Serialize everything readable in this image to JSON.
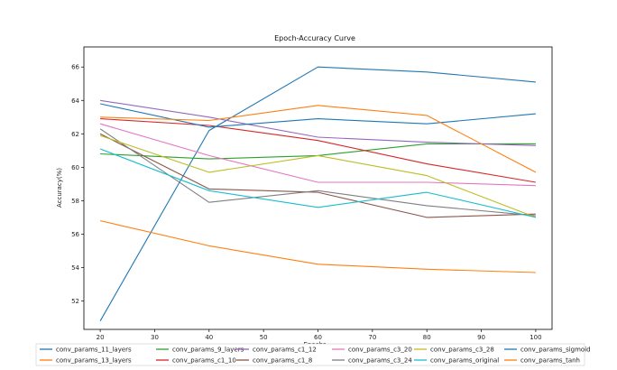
{
  "chart_data": {
    "type": "line",
    "title": "Epoch-Accuracy Curve",
    "xlabel": "Epochs",
    "ylabel": "Accuracy(%)",
    "xlim": [
      17,
      103
    ],
    "ylim": [
      50.3,
      67.2
    ],
    "xticks": [
      20,
      30,
      40,
      50,
      60,
      70,
      80,
      90,
      100
    ],
    "yticks": [
      52,
      54,
      56,
      58,
      60,
      62,
      64,
      66
    ],
    "legend_position": "bottom",
    "grid": false,
    "x": [
      20,
      40,
      60,
      80,
      100
    ],
    "series": [
      {
        "name": "conv_params_11_layers",
        "color": "#1f77b4",
        "values": [
          50.8,
          62.2,
          66.0,
          65.7,
          65.1
        ]
      },
      {
        "name": "conv_params_13_layers",
        "color": "#ff7f0e",
        "values": [
          56.8,
          55.3,
          54.2,
          53.9,
          53.7
        ]
      },
      {
        "name": "conv_params_9_layers",
        "color": "#2ca02c",
        "values": [
          60.8,
          60.5,
          60.7,
          61.4,
          61.4
        ]
      },
      {
        "name": "conv_params_c1_10",
        "color": "#d62728",
        "values": [
          62.9,
          62.5,
          61.6,
          60.2,
          59.1
        ]
      },
      {
        "name": "conv_params_c1_12",
        "color": "#9467bd",
        "values": [
          64.0,
          63.0,
          61.8,
          61.5,
          61.3
        ]
      },
      {
        "name": "conv_params_c1_8",
        "color": "#8c564b",
        "values": [
          62.0,
          58.7,
          58.5,
          57.0,
          57.2
        ]
      },
      {
        "name": "conv_params_c3_20",
        "color": "#e377c2",
        "values": [
          62.6,
          60.7,
          59.1,
          59.1,
          58.9
        ]
      },
      {
        "name": "conv_params_c3_24",
        "color": "#7f7f7f",
        "values": [
          62.3,
          57.9,
          58.6,
          57.7,
          57.1
        ]
      },
      {
        "name": "conv_params_c3_28",
        "color": "#bcbd22",
        "values": [
          61.9,
          59.7,
          60.7,
          59.5,
          57.0
        ]
      },
      {
        "name": "conv_params_original",
        "color": "#17becf",
        "values": [
          61.1,
          58.6,
          57.6,
          58.5,
          57.0
        ]
      },
      {
        "name": "conv_params_sigmoid",
        "color": "#1f77b4",
        "values": [
          63.8,
          62.4,
          62.9,
          62.6,
          63.2
        ]
      },
      {
        "name": "conv_params_tanh",
        "color": "#ff7f0e",
        "values": [
          63.0,
          62.8,
          63.7,
          63.1,
          59.7
        ]
      }
    ]
  }
}
